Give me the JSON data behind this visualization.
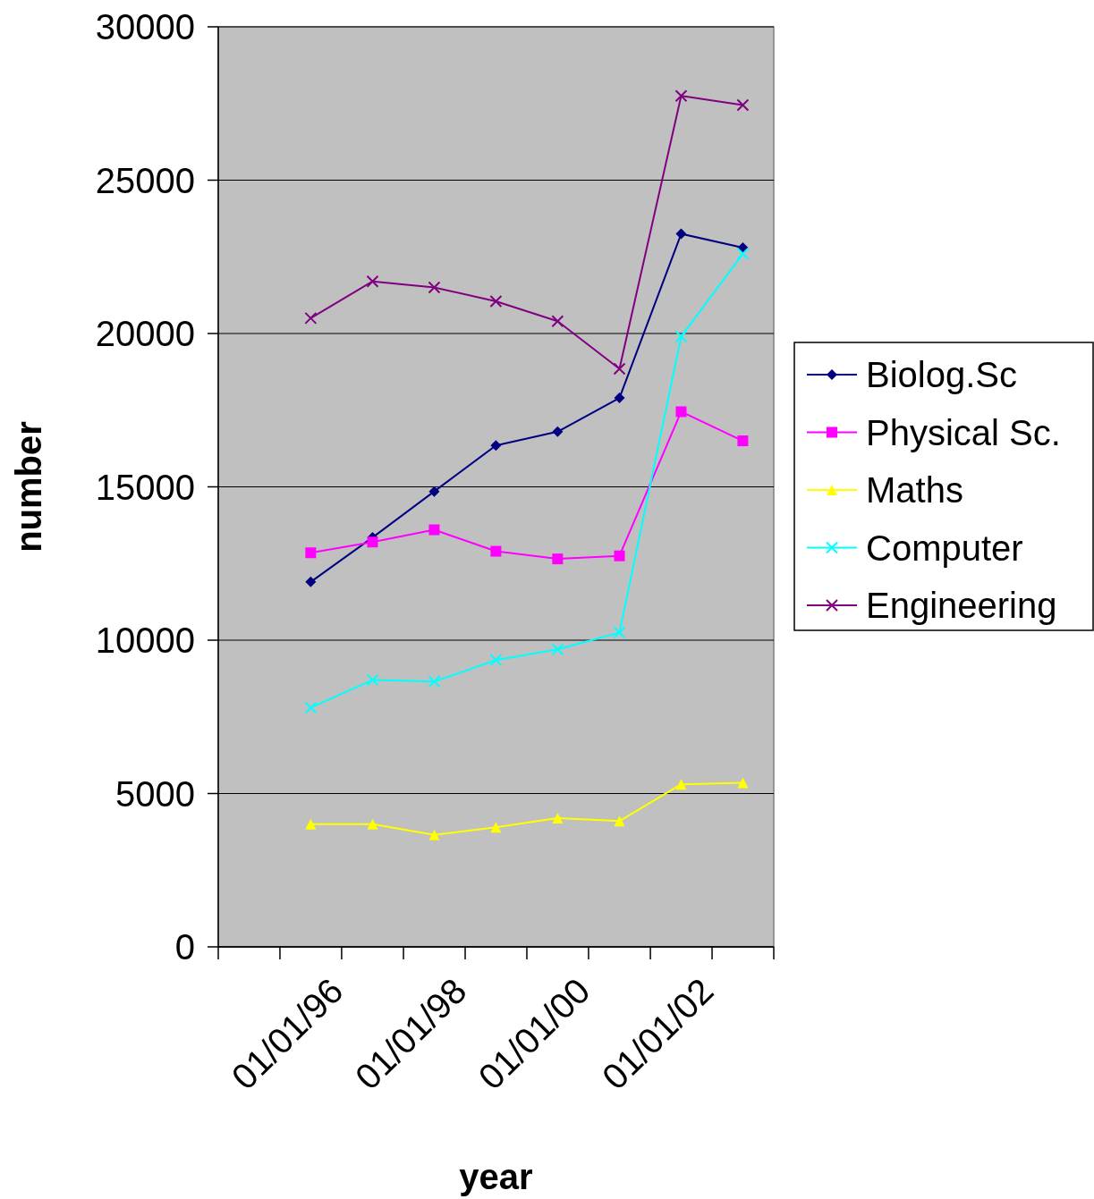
{
  "chart_data": {
    "type": "line",
    "xlabel": "year",
    "ylabel": "number",
    "x": [
      "1995-07-02",
      "1996-07-02",
      "1997-07-02",
      "1998-07-02",
      "1999-07-02",
      "2000-07-02",
      "2001-07-02",
      "2002-07-02"
    ],
    "xlim": [
      "1994-01-01",
      "2003-01-01"
    ],
    "xticks": [
      {
        "value": "1994-01-01",
        "label": null
      },
      {
        "value": "1995-01-01",
        "label": null
      },
      {
        "value": "1996-01-01",
        "label": "01/01/96"
      },
      {
        "value": "1997-01-01",
        "label": null
      },
      {
        "value": "1998-01-01",
        "label": "01/01/98"
      },
      {
        "value": "1999-01-01",
        "label": null
      },
      {
        "value": "2000-01-01",
        "label": "01/01/00"
      },
      {
        "value": "2001-01-01",
        "label": null
      },
      {
        "value": "2002-01-01",
        "label": "01/01/02"
      },
      {
        "value": "2003-01-01",
        "label": null
      }
    ],
    "ylim": [
      0,
      30000
    ],
    "yticks": [
      0,
      5000,
      10000,
      15000,
      20000,
      25000,
      30000
    ],
    "grid": "y",
    "legend": "right",
    "series": [
      {
        "name": "Biolog.Sc",
        "color": "#000080",
        "marker": "diamond",
        "values": [
          11900,
          13350,
          14850,
          16350,
          16800,
          17900,
          23250,
          22800
        ]
      },
      {
        "name": "Physical Sc.",
        "color": "#ff00ff",
        "marker": "square",
        "values": [
          12850,
          13200,
          13600,
          12900,
          12650,
          12750,
          17450,
          16500
        ]
      },
      {
        "name": "Maths",
        "color": "#ffff00",
        "marker": "triangle",
        "values": [
          4000,
          4000,
          3650,
          3900,
          4200,
          4100,
          5300,
          5350
        ]
      },
      {
        "name": "Computer",
        "color": "#00ffff",
        "marker": "cross",
        "values": [
          7800,
          8700,
          8650,
          9350,
          9700,
          10250,
          19900,
          22600
        ]
      },
      {
        "name": "Engineering",
        "color": "#800080",
        "marker": "cross",
        "values": [
          20500,
          21700,
          21500,
          21050,
          20400,
          18850,
          27750,
          27450
        ]
      }
    ]
  }
}
